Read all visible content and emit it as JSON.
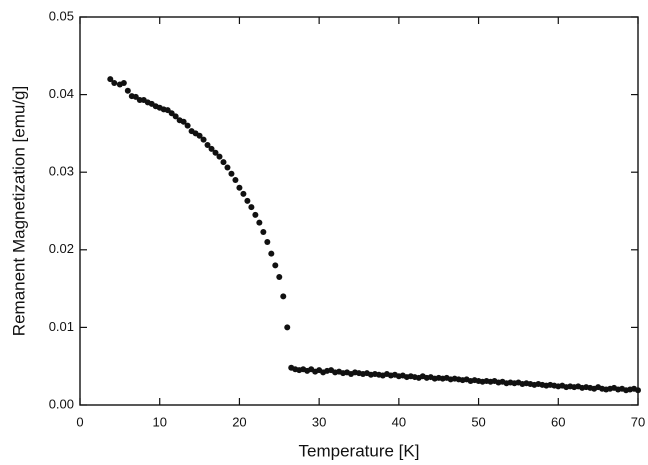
{
  "chart_data": {
    "type": "scatter",
    "x_label": "Temperature [K]",
    "y_label": "Remanent Magnetization [emu/g]",
    "xlim": [
      0,
      70
    ],
    "xticks": [
      0,
      10,
      20,
      30,
      40,
      50,
      60,
      70
    ],
    "ylim": [
      0,
      0.05
    ],
    "yticks": [
      {
        "value": 0,
        "label": "0.00"
      },
      0.01,
      0.02,
      0.03,
      0.04,
      0.05
    ],
    "color": "#111111",
    "x": [
      3.8,
      4.3,
      5,
      5.5,
      6,
      6.5,
      7,
      7.5,
      8,
      8.5,
      9,
      9.5,
      10,
      10.5,
      11,
      11.5,
      12,
      12.5,
      13,
      13.5,
      14,
      14.5,
      15,
      15.5,
      16,
      16.5,
      17,
      17.5,
      18,
      18.5,
      19,
      19.5,
      20,
      20.5,
      21,
      21.5,
      22,
      22.5,
      23,
      23.5,
      24,
      24.5,
      25,
      25.5,
      26,
      26.5,
      27,
      27.5,
      28,
      28.5,
      29,
      29.5,
      30,
      30.5,
      31,
      31.5,
      32,
      32.5,
      33,
      33.5,
      34,
      34.5,
      35,
      35.5,
      36,
      36.5,
      37,
      37.5,
      38,
      38.5,
      39,
      39.5,
      40,
      40.5,
      41,
      41.5,
      42,
      42.5,
      43,
      43.5,
      44,
      44.5,
      45,
      45.5,
      46,
      46.5,
      47,
      47.5,
      48,
      48.5,
      49,
      49.5,
      50,
      50.5,
      51,
      51.5,
      52,
      52.5,
      53,
      53.5,
      54,
      54.5,
      55,
      55.5,
      56,
      56.5,
      57,
      57.5,
      58,
      58.5,
      59,
      59.5,
      60,
      60.5,
      61,
      61.5,
      62,
      62.5,
      63,
      63.5,
      64,
      64.5,
      65,
      65.5,
      66,
      66.5,
      67,
      67.5,
      68,
      68.5,
      69,
      69.5,
      70
    ],
    "values": [
      0.042,
      0.0415,
      0.0413,
      0.0415,
      0.0405,
      0.0398,
      0.0397,
      0.0393,
      0.0393,
      0.039,
      0.0388,
      0.0385,
      0.0383,
      0.0381,
      0.038,
      0.0376,
      0.0372,
      0.0367,
      0.0365,
      0.036,
      0.0353,
      0.035,
      0.0347,
      0.0342,
      0.0335,
      0.033,
      0.0325,
      0.032,
      0.0313,
      0.0306,
      0.0298,
      0.029,
      0.028,
      0.0272,
      0.0263,
      0.0255,
      0.0245,
      0.0235,
      0.0223,
      0.021,
      0.0195,
      0.018,
      0.0165,
      0.014,
      0.01,
      0.0048,
      0.0046,
      0.0045,
      0.0046,
      0.0044,
      0.0046,
      0.0043,
      0.0045,
      0.0042,
      0.0044,
      0.0045,
      0.0042,
      0.0043,
      0.0041,
      0.0042,
      0.004,
      0.0042,
      0.0041,
      0.004,
      0.0041,
      0.0039,
      0.004,
      0.0039,
      0.0038,
      0.004,
      0.0038,
      0.0039,
      0.0037,
      0.0038,
      0.0036,
      0.0037,
      0.0036,
      0.0035,
      0.0037,
      0.0035,
      0.0036,
      0.0034,
      0.0035,
      0.0034,
      0.0035,
      0.0033,
      0.0034,
      0.0033,
      0.0032,
      0.0033,
      0.0031,
      0.0032,
      0.0031,
      0.003,
      0.0031,
      0.003,
      0.0031,
      0.0029,
      0.003,
      0.0028,
      0.0029,
      0.0028,
      0.0029,
      0.0027,
      0.0028,
      0.0027,
      0.0026,
      0.0027,
      0.0026,
      0.0025,
      0.0026,
      0.0025,
      0.0024,
      0.0025,
      0.0023,
      0.0024,
      0.0023,
      0.0024,
      0.0022,
      0.0023,
      0.0022,
      0.0021,
      0.0023,
      0.0021,
      0.002,
      0.0021,
      0.0022,
      0.002,
      0.0021,
      0.0019,
      0.002,
      0.0021,
      0.0019
    ]
  }
}
